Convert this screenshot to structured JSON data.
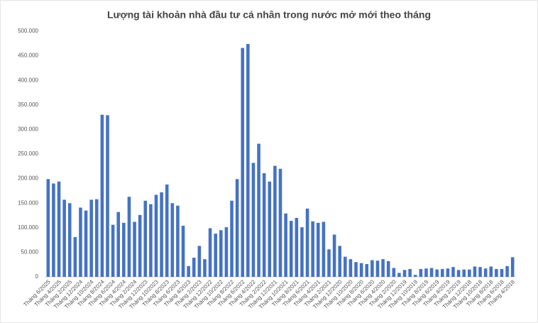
{
  "chart_data": {
    "type": "bar",
    "title": "Lượng tài khoản nhà đầu tư cá nhân trong nước mở mới theo tháng",
    "categories": [
      "Tháng 6/2025",
      null,
      "Tháng 4/2025",
      null,
      "Tháng 2/2025",
      null,
      "Tháng 12/2024",
      null,
      "Tháng 10/2024",
      null,
      "Tháng 8/2024",
      null,
      "Tháng 6/2024",
      null,
      "Tháng 4/2024",
      null,
      "Tháng 2/2024",
      null,
      "Tháng 12/2023",
      null,
      "Tháng 10/2023",
      null,
      "Tháng 8/2023",
      null,
      "Tháng 6/2023",
      null,
      "Tháng 4/2023",
      null,
      "Tháng 2/2023",
      null,
      "Tháng 12/2022",
      null,
      "Tháng 10/2022",
      null,
      "Tháng 8/2022",
      null,
      "Tháng 6/2022",
      null,
      "Tháng 4/2022",
      null,
      "Tháng 2/2022",
      null,
      "Tháng 12/2021",
      null,
      "Tháng 10/2021",
      null,
      "Tháng 8/2021",
      null,
      "Tháng 6/2021",
      null,
      "Tháng 4/2021",
      null,
      "Tháng 2/2021",
      null,
      "Tháng 12/2020",
      null,
      "Tháng 10/2020",
      null,
      "Tháng 8/2020",
      null,
      "Tháng 6/2020",
      null,
      "Tháng 4/2020",
      null,
      "Tháng 2/2020",
      null,
      "Tháng 12/2019",
      null,
      "Tháng 10/2019",
      null,
      "Tháng 8/2019",
      null,
      "Tháng 6/2019",
      null,
      "Tháng 4/2019",
      null,
      "Tháng 2/2019",
      null,
      "Tháng 12/2018",
      null,
      "Tháng 10/2018",
      null,
      "Tháng 8/2018",
      null,
      "Tháng 6/2018",
      null,
      "Tháng 4/2018"
    ],
    "values": [
      199000,
      190000,
      194000,
      157000,
      150000,
      81000,
      141000,
      135000,
      157000,
      158000,
      330000,
      329000,
      106000,
      132000,
      110000,
      163000,
      112000,
      126000,
      155000,
      148000,
      167000,
      172000,
      188000,
      150000,
      145000,
      104000,
      22000,
      39000,
      63000,
      36000,
      99000,
      88000,
      95000,
      101000,
      155000,
      199000,
      466000,
      474000,
      232000,
      271000,
      211000,
      194000,
      226000,
      220000,
      129000,
      114000,
      120000,
      101000,
      139000,
      113000,
      110000,
      112000,
      56000,
      86000,
      63000,
      41000,
      36000,
      30000,
      28000,
      26000,
      34000,
      33000,
      36000,
      32000,
      18000,
      8000,
      14000,
      16000,
      4000,
      16000,
      17000,
      18000,
      15000,
      16000,
      17000,
      20000,
      14000,
      15000,
      15000,
      21000,
      20000,
      17000,
      21000,
      16000,
      16000,
      22000,
      40000
    ],
    "color": "#4472c4",
    "ylim": [
      0,
      500000
    ],
    "yticks": [
      0,
      {
        "value": 50000,
        "label": "50.000"
      },
      {
        "value": 100000,
        "label": "100.000"
      },
      {
        "value": 150000,
        "label": "150.000"
      },
      {
        "value": 200000,
        "label": "200.000"
      },
      {
        "value": 250000,
        "label": "250.000"
      },
      {
        "value": 300000,
        "label": "300.000"
      },
      {
        "value": 350000,
        "label": "350.000"
      },
      {
        "value": 400000,
        "label": "400.000"
      },
      {
        "value": 450000,
        "label": "450.000"
      },
      {
        "value": 500000,
        "label": "500.000"
      }
    ],
    "grid": false
  }
}
